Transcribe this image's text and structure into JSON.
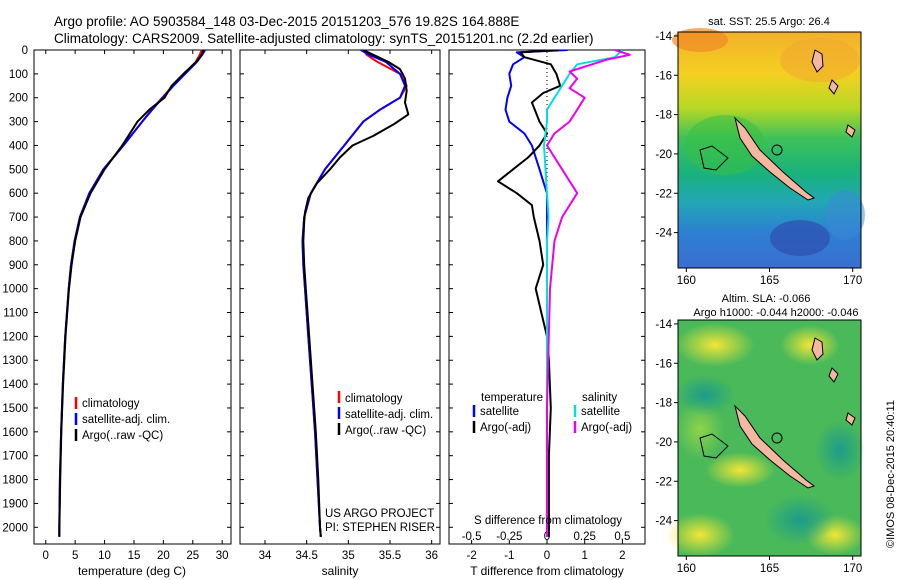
{
  "header": {
    "line1": "Argo profile: AO 5903584_148 03-Dec-2015 20151203_576 19.82S 164.888E",
    "line2": "Climatology: CARS2009. Satellite-adjusted climatology: synTS_20151201.nc (2.2d earlier)"
  },
  "colors": {
    "climatology": "#ff0000",
    "satellite": "#0000ff",
    "argo": "#000000",
    "satellite_salinity": "#00e0e0",
    "argo_salinity": "#ee00ee"
  },
  "depth_axis": {
    "ticks": [
      "0",
      "100",
      "200",
      "300",
      "400",
      "500",
      "600",
      "700",
      "800",
      "900",
      "1000",
      "1100",
      "1200",
      "1300",
      "1400",
      "1500",
      "1600",
      "1700",
      "1800",
      "1900",
      "2000"
    ]
  },
  "chart_data": [
    {
      "type": "line",
      "name": "temperature-profile",
      "xlabel": "temperature (deg C)",
      "ylabel": "depth (m)",
      "xlim": [
        -2,
        31.5
      ],
      "ylim": [
        2070,
        0
      ],
      "xticks": [
        "0",
        "5",
        "10",
        "15",
        "20",
        "25",
        "30"
      ],
      "legend": [
        "climatology",
        "satellite-adj. clim.",
        "Argo(..raw -QC)"
      ],
      "series": [
        {
          "name": "climatology",
          "color": "#ff0000",
          "depth": [
            0,
            20,
            50,
            100,
            150,
            200,
            250,
            300,
            400,
            500,
            600,
            700,
            800,
            900,
            1000,
            1200,
            1400,
            1600,
            1800,
            2000,
            2040
          ],
          "values": [
            26.5,
            26.2,
            25.5,
            23.6,
            21.6,
            19.8,
            18.0,
            16.4,
            13.2,
            9.8,
            7.4,
            5.8,
            4.9,
            4.3,
            3.9,
            3.3,
            2.9,
            2.6,
            2.4,
            2.3,
            2.3
          ]
        },
        {
          "name": "satellite-adj. clim.",
          "color": "#0000ff",
          "depth": [
            0,
            20,
            50,
            100,
            150,
            200,
            250,
            300,
            400,
            500,
            600,
            700,
            800,
            900,
            1000,
            1200,
            1400,
            1600,
            1800,
            2000,
            2040
          ],
          "values": [
            27.1,
            26.6,
            25.7,
            23.7,
            21.7,
            19.9,
            18.1,
            16.4,
            13.2,
            9.8,
            7.4,
            5.8,
            4.9,
            4.3,
            3.9,
            3.3,
            2.9,
            2.6,
            2.4,
            2.3,
            2.3
          ]
        },
        {
          "name": "Argo",
          "color": "#000000",
          "depth": [
            0,
            20,
            50,
            100,
            150,
            200,
            250,
            300,
            400,
            450,
            500,
            600,
            700,
            800,
            900,
            1000,
            1200,
            1400,
            1600,
            1800,
            2000,
            2040
          ],
          "values": [
            26.8,
            26.5,
            25.6,
            23.4,
            21.4,
            20.2,
            17.6,
            15.6,
            13.0,
            11.5,
            10.0,
            7.6,
            5.9,
            5.0,
            4.4,
            3.95,
            3.35,
            2.95,
            2.65,
            2.45,
            2.32,
            2.3
          ]
        }
      ]
    },
    {
      "type": "line",
      "name": "salinity-profile",
      "xlabel": "salinity",
      "ylabel": "depth (m)",
      "xlim": [
        33.7,
        36.1
      ],
      "ylim": [
        2070,
        0
      ],
      "xticks": [
        "34",
        "34.5",
        "35",
        "35.5",
        "36"
      ],
      "legend": [
        "climatology",
        "satellite-adj. clim.",
        "Argo(..raw -QC)"
      ],
      "annotation": [
        "US ARGO PROJECT",
        "PI: STEPHEN RISER"
      ],
      "series": [
        {
          "name": "climatology",
          "color": "#ff0000",
          "depth": [
            0,
            20,
            50,
            100,
            150,
            200,
            250,
            300,
            400,
            500,
            600,
            700,
            800,
            900,
            1000,
            1200,
            1400,
            1600,
            1800,
            2000,
            2040
          ],
          "values": [
            35.18,
            35.22,
            35.35,
            35.62,
            35.7,
            35.62,
            35.38,
            35.18,
            34.95,
            34.72,
            34.55,
            34.47,
            34.45,
            34.46,
            34.48,
            34.52,
            34.56,
            34.6,
            34.63,
            34.66,
            34.67
          ]
        },
        {
          "name": "satellite-adj. clim.",
          "color": "#0000ff",
          "depth": [
            0,
            20,
            50,
            100,
            150,
            200,
            250,
            300,
            400,
            500,
            600,
            700,
            800,
            900,
            1000,
            1200,
            1400,
            1600,
            1800,
            2000,
            2040
          ],
          "values": [
            35.15,
            35.25,
            35.45,
            35.62,
            35.68,
            35.62,
            35.38,
            35.18,
            34.95,
            34.72,
            34.55,
            34.47,
            34.45,
            34.46,
            34.48,
            34.52,
            34.56,
            34.6,
            34.63,
            34.66,
            34.67
          ]
        },
        {
          "name": "Argo",
          "color": "#000000",
          "depth": [
            0,
            20,
            50,
            80,
            120,
            170,
            220,
            270,
            310,
            360,
            400,
            450,
            500,
            560,
            620,
            680,
            720,
            800,
            900,
            1000,
            1200,
            1400,
            1600,
            1800,
            2000,
            2040
          ],
          "values": [
            35.18,
            35.3,
            35.48,
            35.62,
            35.68,
            35.7,
            35.68,
            35.72,
            35.55,
            35.3,
            35.05,
            34.9,
            34.78,
            34.62,
            34.52,
            34.48,
            34.47,
            34.46,
            34.47,
            34.49,
            34.53,
            34.57,
            34.61,
            34.64,
            34.66,
            34.67
          ]
        }
      ]
    },
    {
      "type": "line",
      "name": "difference-from-climatology",
      "xlabel": "T difference from climatology",
      "x2label": "S difference from climatology",
      "xlim": [
        -2.6,
        2.6
      ],
      "x2lim": [
        -0.65,
        0.65
      ],
      "ylim": [
        2070,
        0
      ],
      "xticks": [
        "-2",
        "-1",
        "0",
        "1",
        "2"
      ],
      "x2ticks": [
        "-0.5",
        "-0.25",
        "0",
        "0.25",
        "0.5"
      ],
      "legend_titles": [
        "temperature",
        "salinity"
      ],
      "legend": [
        "satellite",
        "Argo(-adj)",
        "satellite",
        "Argo(-adj)"
      ],
      "series": [
        {
          "name": "T satellite",
          "color": "#0000ff",
          "depth": [
            0,
            10,
            30,
            60,
            100,
            150,
            200,
            250,
            300,
            350,
            400,
            450,
            500,
            550,
            600,
            700,
            800,
            1000,
            1500,
            2000,
            2040
          ],
          "values": [
            0.55,
            -0.8,
            -0.6,
            -0.9,
            -1.0,
            -0.95,
            -1.05,
            -1.1,
            -1.0,
            -0.6,
            -0.4,
            -0.3,
            -0.2,
            -0.1,
            0.0,
            0.0,
            0.0,
            0.0,
            0.0,
            0.0,
            0.0
          ]
        },
        {
          "name": "T Argo",
          "color": "#000000",
          "depth": [
            0,
            10,
            30,
            60,
            100,
            150,
            180,
            220,
            260,
            300,
            350,
            400,
            450,
            500,
            550,
            600,
            650,
            700,
            800,
            900,
            1000,
            1100,
            1200,
            1300,
            1500,
            1700,
            2000,
            2040
          ],
          "values": [
            0.3,
            -0.7,
            -0.6,
            0.1,
            0.25,
            0.35,
            -0.1,
            -0.4,
            -0.3,
            -0.2,
            0.0,
            -0.2,
            -0.5,
            -0.9,
            -1.3,
            -0.8,
            -0.4,
            -0.35,
            -0.2,
            -0.1,
            -0.3,
            -0.15,
            0.0,
            0.05,
            0.1,
            0.05,
            0.05,
            0.05
          ]
        },
        {
          "name": "S satellite",
          "color": "#00e0e0",
          "depth": [
            0,
            30,
            60,
            100,
            150,
            200,
            250,
            300,
            400,
            500,
            600,
            700,
            800,
            1000,
            1500,
            2000,
            2040
          ],
          "values": [
            0.5,
            0.45,
            0.2,
            0.15,
            0.1,
            0.05,
            0.0,
            0.0,
            -0.02,
            -0.01,
            0.0,
            0.01,
            0.0,
            0.0,
            0.0,
            0.0,
            0.0
          ]
        },
        {
          "name": "S Argo",
          "color": "#ee00ee",
          "depth": [
            0,
            20,
            40,
            60,
            90,
            120,
            160,
            200,
            250,
            300,
            350,
            400,
            500,
            600,
            700,
            800,
            1000,
            1500,
            2000,
            2040
          ],
          "values": [
            0.45,
            0.55,
            0.4,
            0.3,
            0.15,
            0.2,
            0.15,
            0.25,
            0.2,
            0.15,
            0.05,
            0.0,
            0.1,
            0.2,
            0.1,
            0.05,
            0.02,
            0.0,
            0.0,
            0.0
          ]
        }
      ]
    },
    {
      "type": "heatmap",
      "name": "sst-map",
      "title": "sat. SST: 25.5 Argo: 26.4",
      "xlim": [
        159.5,
        170.5
      ],
      "ylim": [
        -25.8,
        -13.8
      ],
      "xticks": [
        "160",
        "165",
        "170"
      ],
      "yticks": [
        "-14",
        "-16",
        "-18",
        "-20",
        "-22",
        "-24"
      ],
      "float_position": [
        164.888,
        -19.82
      ]
    },
    {
      "type": "heatmap",
      "name": "sla-map",
      "title": "Altim. SLA: -0.066",
      "subtitle": "Argo h1000: -0.044 h2000: -0.046",
      "xlim": [
        159.5,
        170.5
      ],
      "ylim": [
        -25.8,
        -13.8
      ],
      "xticks": [
        "160",
        "165",
        "170"
      ],
      "yticks": [
        "-14",
        "-16",
        "-18",
        "-20",
        "-22",
        "-24"
      ],
      "float_position": [
        164.888,
        -19.82
      ]
    }
  ],
  "credit": "©IMOS 08-Dec-2015 20:40:11"
}
